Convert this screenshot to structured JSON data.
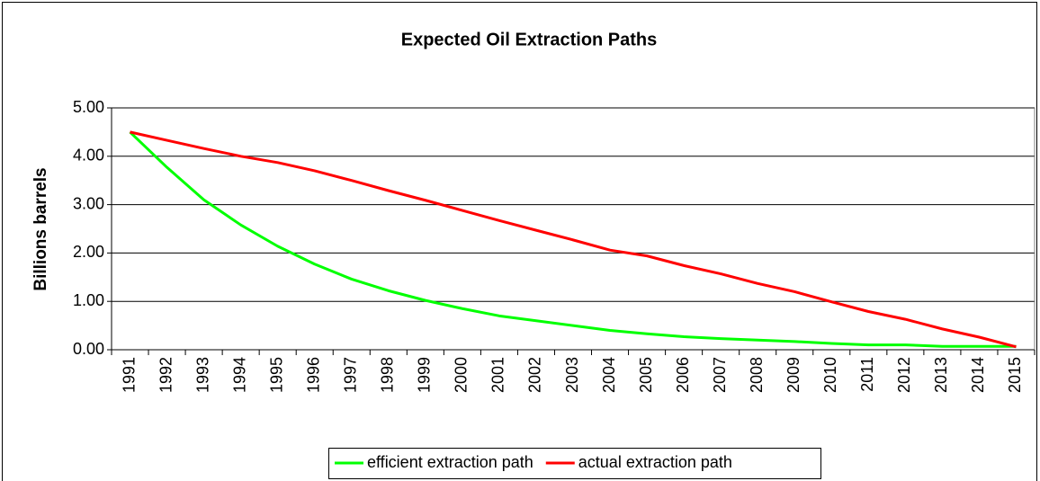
{
  "chart_data": {
    "type": "line",
    "title": "Expected Oil Extraction Paths",
    "y_label": "Billions barrels",
    "categories": [
      "1991",
      "1992",
      "1993",
      "1994",
      "1995",
      "1996",
      "1997",
      "1998",
      "1999",
      "2000",
      "2001",
      "2002",
      "2003",
      "2004",
      "2005",
      "2006",
      "2007",
      "2008",
      "2009",
      "2010",
      "2011",
      "2012",
      "2013",
      "2014",
      "2015"
    ],
    "series": [
      {
        "name": "efficient extraction path",
        "color": "#00ff00",
        "values": [
          4.5,
          3.77,
          3.1,
          2.58,
          2.14,
          1.77,
          1.46,
          1.22,
          1.02,
          0.85,
          0.7,
          0.6,
          0.5,
          0.4,
          0.33,
          0.27,
          0.23,
          0.2,
          0.17,
          0.13,
          0.1,
          0.1,
          0.07,
          0.07,
          0.07
        ]
      },
      {
        "name": "actual extraction path",
        "color": "#ff0000",
        "values": [
          4.5,
          4.33,
          4.16,
          4.0,
          3.87,
          3.7,
          3.5,
          3.29,
          3.09,
          2.88,
          2.67,
          2.47,
          2.27,
          2.06,
          1.94,
          1.74,
          1.57,
          1.37,
          1.2,
          0.99,
          0.79,
          0.63,
          0.43,
          0.26,
          0.06
        ]
      }
    ],
    "ylim": [
      0,
      5
    ],
    "yticks": [
      {
        "value": 0,
        "label": "0.00"
      },
      {
        "value": 1,
        "label": "1.00"
      },
      {
        "value": 2,
        "label": "2.00"
      },
      {
        "value": 3,
        "label": "3.00"
      },
      {
        "value": 4,
        "label": "4.00"
      },
      {
        "value": 5,
        "label": "5.00"
      }
    ],
    "grid": true,
    "legend": "bottom"
  }
}
